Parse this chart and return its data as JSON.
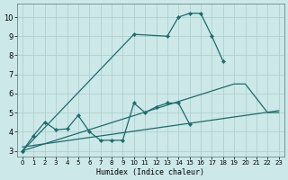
{
  "xlabel": "Humidex (Indice chaleur)",
  "bg_color": "#cce8e8",
  "grid_color": "#aacccc",
  "line_color": "#1e6b6b",
  "xlim": [
    -0.5,
    23.5
  ],
  "ylim": [
    2.7,
    10.7
  ],
  "xticks": [
    0,
    1,
    2,
    3,
    4,
    5,
    6,
    7,
    8,
    9,
    10,
    11,
    12,
    13,
    14,
    15,
    16,
    17,
    18,
    19,
    20,
    21,
    22,
    23
  ],
  "yticks": [
    3,
    4,
    5,
    6,
    7,
    8,
    9,
    10
  ],
  "series1_x": [
    0,
    1,
    2,
    3,
    4,
    5,
    6,
    7,
    8,
    9,
    10,
    11,
    12,
    13,
    14,
    15
  ],
  "series1_y": [
    3.0,
    3.8,
    4.5,
    4.1,
    4.15,
    4.85,
    4.0,
    3.55,
    3.55,
    3.55,
    5.5,
    5.0,
    5.3,
    5.5,
    5.5,
    4.4
  ],
  "series2_x": [
    0,
    10,
    13,
    14,
    15,
    16,
    17,
    18
  ],
  "series2_y": [
    3.0,
    9.1,
    9.0,
    10.0,
    10.2,
    10.2,
    9.0,
    7.7
  ],
  "series3_x": [
    0,
    19,
    20,
    22,
    23
  ],
  "series3_y": [
    3.0,
    6.5,
    6.5,
    5.0,
    5.0
  ],
  "series4_x": [
    0,
    23
  ],
  "series4_y": [
    3.2,
    5.1
  ]
}
